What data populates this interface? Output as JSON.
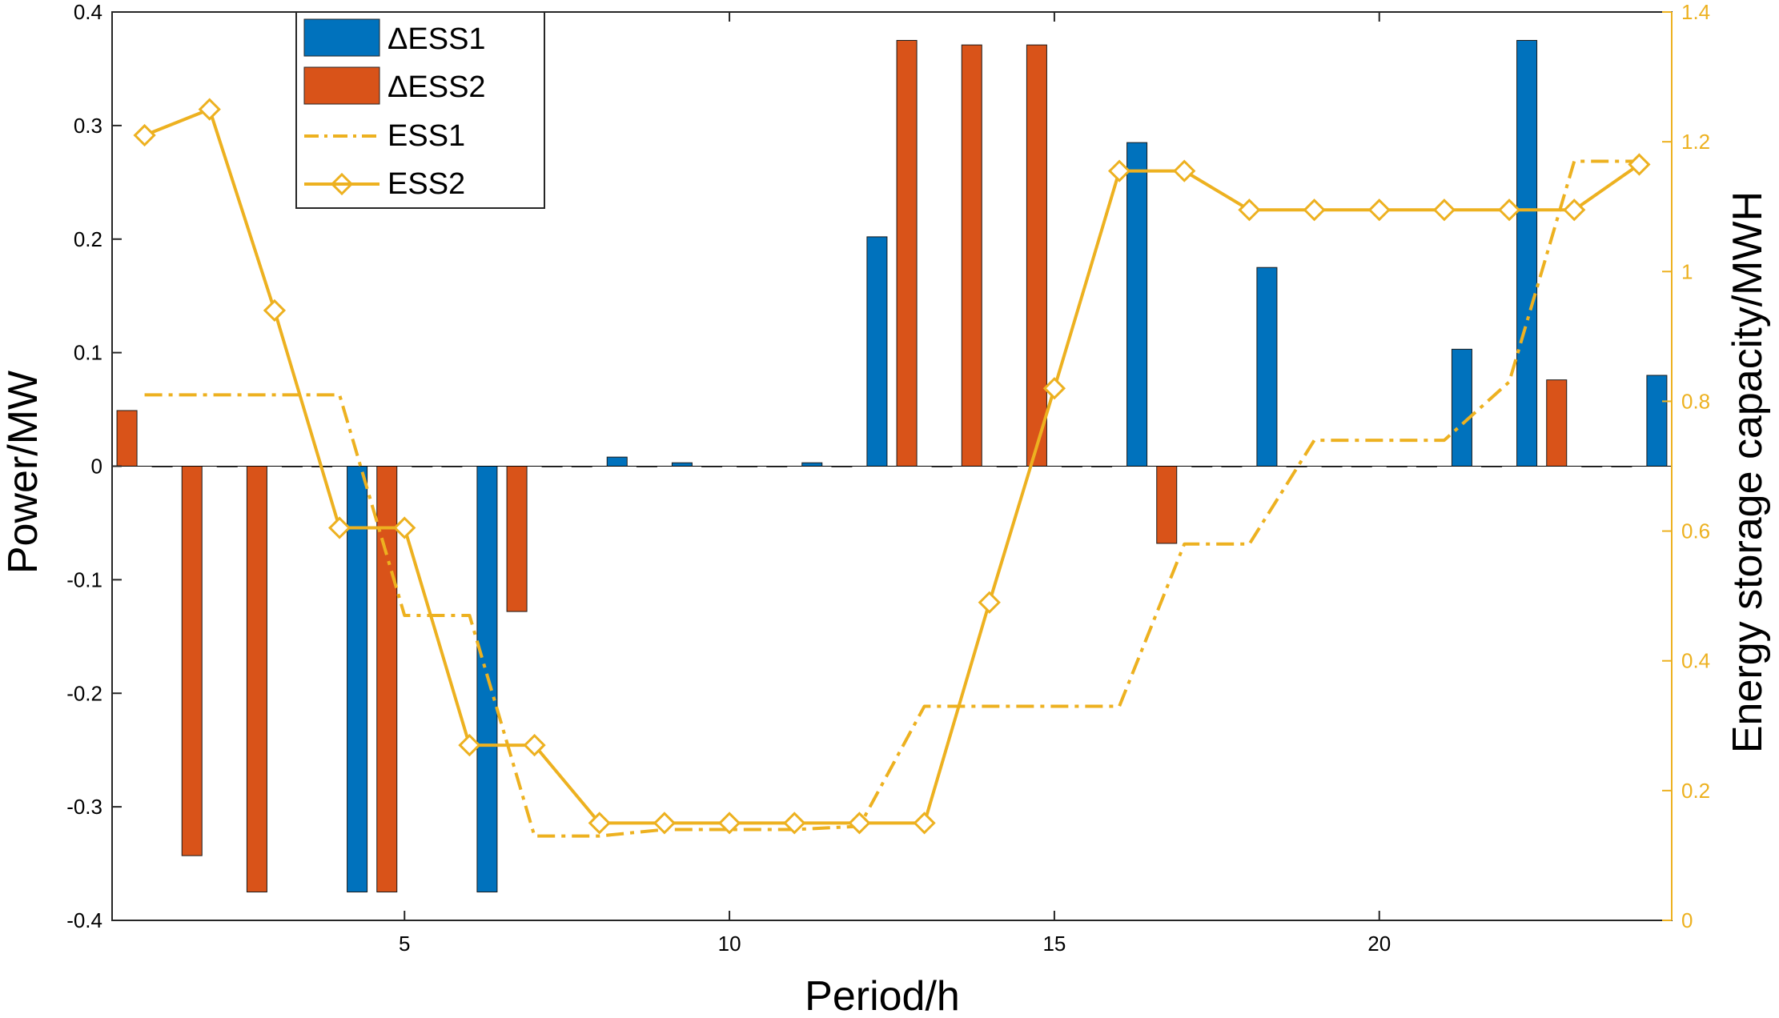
{
  "chart_data": {
    "type": "bar+line",
    "x": [
      1,
      2,
      3,
      4,
      5,
      6,
      7,
      8,
      9,
      10,
      11,
      12,
      13,
      14,
      15,
      16,
      17,
      18,
      19,
      20,
      21,
      22,
      23,
      24
    ],
    "xlabel": "Period/h",
    "xlim": [
      0.5,
      24.5
    ],
    "xticks": [
      5,
      10,
      15,
      20
    ],
    "ylabel_left": "Power/MW",
    "ylim_left": [
      -0.4,
      0.4
    ],
    "yticks_left": [
      -0.4,
      -0.3,
      -0.2,
      -0.1,
      0,
      0.1,
      0.2,
      0.3,
      0.4
    ],
    "ylabel_right": "Energy storage capacity/MWH",
    "ylim_right": [
      0,
      1.4
    ],
    "yticks_right": [
      0,
      0.2,
      0.4,
      0.6,
      0.8,
      1,
      1.2,
      1.4
    ],
    "bar_series": [
      {
        "name": "ΔESS1",
        "color": "#0072BD",
        "values": [
          0,
          0,
          0,
          -0.375,
          0,
          -0.375,
          0,
          0.008,
          0.003,
          0,
          0.003,
          0.202,
          0,
          0,
          0,
          0.285,
          0,
          0.175,
          0,
          0,
          0.103,
          0.375,
          0,
          0.08
        ]
      },
      {
        "name": "ΔESS2",
        "color": "#D95319",
        "values": [
          0.049,
          -0.343,
          -0.375,
          0,
          -0.375,
          0,
          -0.128,
          0,
          0,
          0,
          0,
          0,
          0.375,
          0.371,
          0.371,
          0,
          -0.068,
          0,
          0,
          0,
          0,
          0,
          0.076,
          0
        ]
      }
    ],
    "line_series": [
      {
        "name": "ESS1",
        "color": "#EDB120",
        "style": "dash-dot",
        "values": [
          0.81,
          0.81,
          0.81,
          0.81,
          0.47,
          0.47,
          0.13,
          0.13,
          0.14,
          0.14,
          0.14,
          0.145,
          0.33,
          0.33,
          0.33,
          0.33,
          0.58,
          0.58,
          0.74,
          0.74,
          0.74,
          0.83,
          1.17,
          1.17
        ]
      },
      {
        "name": "ESS2",
        "color": "#EDB120",
        "style": "solid-diamond",
        "values": [
          1.21,
          1.25,
          0.94,
          0.605,
          0.605,
          0.27,
          0.27,
          0.15,
          0.15,
          0.15,
          0.15,
          0.15,
          0.15,
          0.49,
          0.82,
          1.155,
          1.155,
          1.095,
          1.095,
          1.095,
          1.095,
          1.095,
          1.095,
          1.165
        ]
      }
    ],
    "legend": {
      "position": "top-left",
      "entries": [
        "ΔESS1",
        "ΔESS2",
        "ESS1",
        "ESS2"
      ]
    }
  }
}
